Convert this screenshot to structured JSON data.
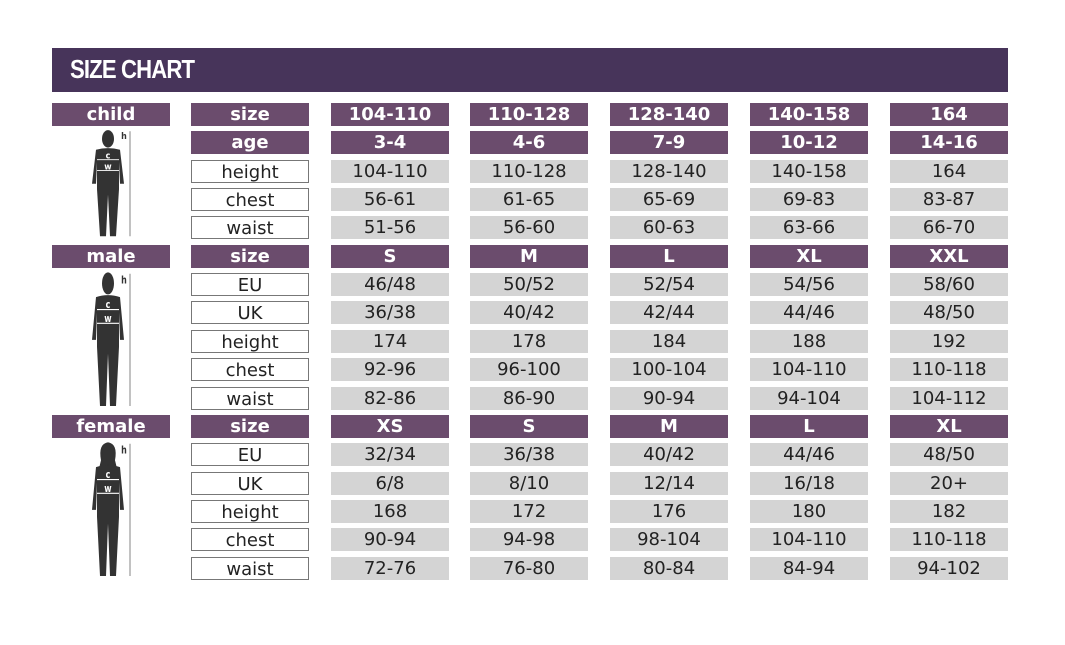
{
  "title": "SIZE CHART",
  "colors": {
    "header": "#47345a",
    "purple_cell": "#6b4c6d",
    "gray_cell": "#d4d4d4"
  },
  "sections": [
    {
      "label": "child",
      "icon": "child-silhouette-icon",
      "figure_labels": [
        "h",
        "c",
        "w"
      ],
      "rows": [
        {
          "name": "size",
          "header": true,
          "values": [
            "104-110",
            "110-128",
            "128-140",
            "140-158",
            "164"
          ]
        },
        {
          "name": "age",
          "header": true,
          "values": [
            "3-4",
            "4-6",
            "7-9",
            "10-12",
            "14-16"
          ]
        },
        {
          "name": "height",
          "values": [
            "104-110",
            "110-128",
            "128-140",
            "140-158",
            "164"
          ]
        },
        {
          "name": "chest",
          "values": [
            "56-61",
            "61-65",
            "65-69",
            "69-83",
            "83-87"
          ]
        },
        {
          "name": "waist",
          "values": [
            "51-56",
            "56-60",
            "60-63",
            "63-66",
            "66-70"
          ]
        }
      ]
    },
    {
      "label": "male",
      "icon": "male-silhouette-icon",
      "figure_labels": [
        "h",
        "c",
        "w"
      ],
      "rows": [
        {
          "name": "size",
          "header": true,
          "values": [
            "S",
            "M",
            "L",
            "XL",
            "XXL"
          ]
        },
        {
          "name": "EU",
          "values": [
            "46/48",
            "50/52",
            "52/54",
            "54/56",
            "58/60"
          ]
        },
        {
          "name": "UK",
          "values": [
            "36/38",
            "40/42",
            "42/44",
            "44/46",
            "48/50"
          ]
        },
        {
          "name": "height",
          "values": [
            "174",
            "178",
            "184",
            "188",
            "192"
          ]
        },
        {
          "name": "chest",
          "values": [
            "92-96",
            "96-100",
            "100-104",
            "104-110",
            "110-118"
          ]
        },
        {
          "name": "waist",
          "values": [
            "82-86",
            "86-90",
            "90-94",
            "94-104",
            "104-112"
          ]
        }
      ]
    },
    {
      "label": "female",
      "icon": "female-silhouette-icon",
      "figure_labels": [
        "h",
        "c",
        "w"
      ],
      "rows": [
        {
          "name": "size",
          "header": true,
          "values": [
            "XS",
            "S",
            "M",
            "L",
            "XL"
          ]
        },
        {
          "name": "EU",
          "values": [
            "32/34",
            "36/38",
            "40/42",
            "44/46",
            "48/50"
          ]
        },
        {
          "name": "UK",
          "values": [
            "6/8",
            "8/10",
            "12/14",
            "16/18",
            "20+"
          ]
        },
        {
          "name": "height",
          "values": [
            "168",
            "172",
            "176",
            "180",
            "182"
          ]
        },
        {
          "name": "chest",
          "values": [
            "90-94",
            "94-98",
            "98-104",
            "104-110",
            "110-118"
          ]
        },
        {
          "name": "waist",
          "values": [
            "72-76",
            "76-80",
            "80-84",
            "84-94",
            "94-102"
          ]
        }
      ]
    }
  ]
}
